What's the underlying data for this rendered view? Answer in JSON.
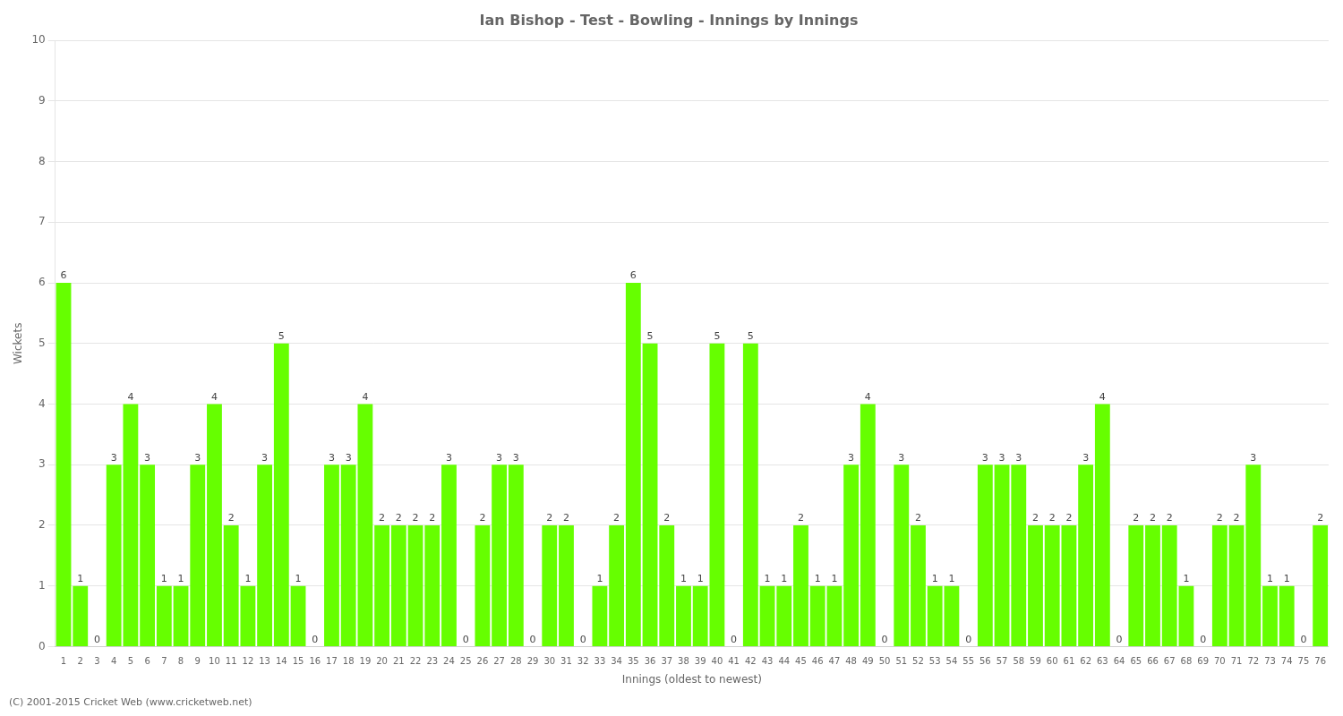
{
  "chart_data": {
    "type": "bar",
    "title": "Ian Bishop - Test - Bowling - Innings by Innings",
    "xlabel": "Innings (oldest to newest)",
    "ylabel": "Wickets",
    "annotations": [
      "(C) 2001-2015 Cricket Web (www.cricketweb.net)"
    ],
    "categories": [
      "1",
      "2",
      "3",
      "4",
      "5",
      "6",
      "7",
      "8",
      "9",
      "10",
      "11",
      "12",
      "13",
      "14",
      "15",
      "16",
      "17",
      "18",
      "19",
      "20",
      "21",
      "22",
      "23",
      "24",
      "25",
      "26",
      "27",
      "28",
      "29",
      "30",
      "31",
      "32",
      "33",
      "34",
      "35",
      "36",
      "37",
      "38",
      "39",
      "40",
      "41",
      "42",
      "43",
      "44",
      "45",
      "46",
      "47",
      "48",
      "49",
      "50",
      "51",
      "52",
      "53",
      "54",
      "55",
      "56",
      "57",
      "58",
      "59",
      "60",
      "61",
      "62",
      "63",
      "64",
      "65",
      "66",
      "67",
      "68",
      "69",
      "70",
      "71",
      "72",
      "73",
      "74",
      "75",
      "76"
    ],
    "values": [
      6,
      1,
      0,
      3,
      4,
      3,
      1,
      1,
      3,
      4,
      2,
      1,
      3,
      5,
      1,
      0,
      3,
      3,
      4,
      2,
      2,
      2,
      2,
      3,
      0,
      2,
      3,
      3,
      0,
      2,
      2,
      0,
      1,
      2,
      6,
      5,
      2,
      1,
      1,
      5,
      0,
      5,
      1,
      1,
      2,
      1,
      1,
      3,
      4,
      0,
      3,
      2,
      1,
      1,
      0,
      3,
      3,
      3,
      2,
      2,
      2,
      3,
      4,
      0,
      2,
      2,
      2,
      1,
      0,
      2,
      2,
      3,
      1,
      1,
      0,
      2
    ],
    "color": "#66ff00",
    "ylim": [
      0,
      10
    ],
    "yticks": [
      0,
      1,
      2,
      3,
      4,
      5,
      6,
      7,
      8,
      9,
      10
    ],
    "grid": true,
    "data_labels": true
  }
}
